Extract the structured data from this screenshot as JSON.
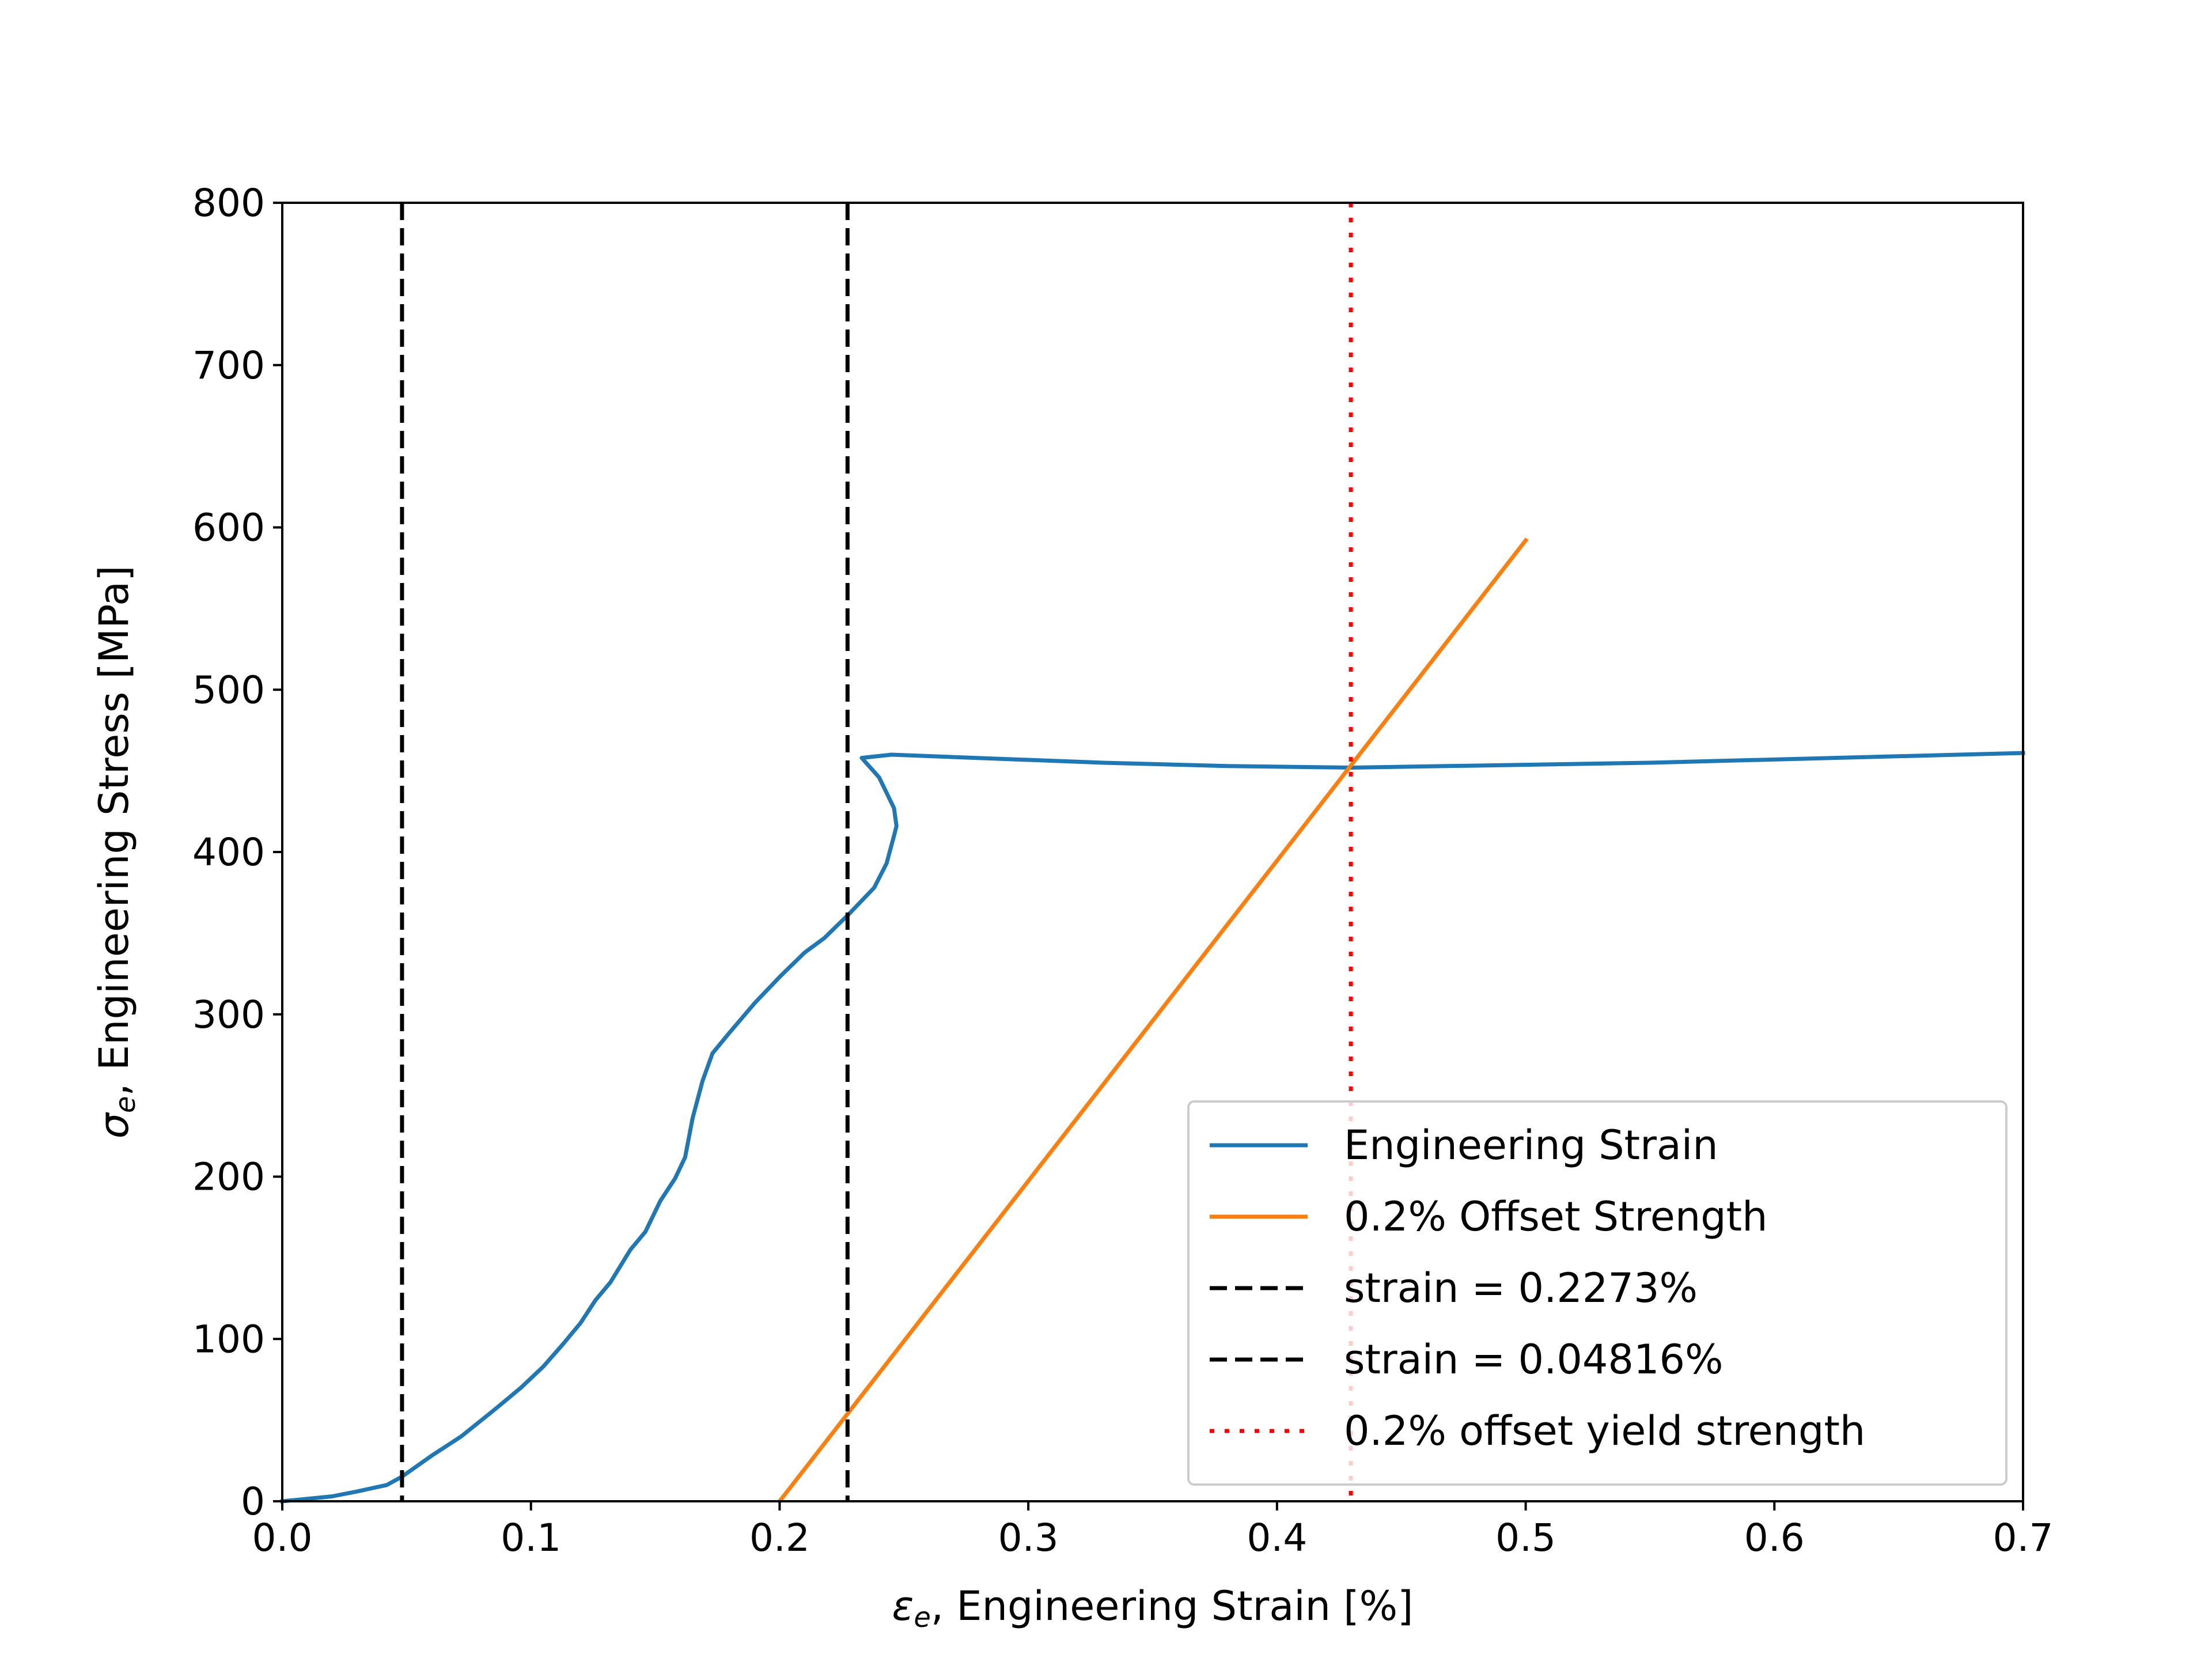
{
  "chart_data": {
    "type": "line",
    "xlabel_symbol": "ε",
    "xlabel_sub": "e",
    "xlabel_text": ", Engineering Strain  [%]",
    "ylabel_symbol": "σ",
    "ylabel_sub": "e",
    "ylabel_text": ", Engineering Stress  [MPa]",
    "xlim": [
      0.0,
      0.7
    ],
    "ylim": [
      0,
      800
    ],
    "x_ticks": [
      "0.0",
      "0.1",
      "0.2",
      "0.3",
      "0.4",
      "0.5",
      "0.6",
      "0.7"
    ],
    "y_ticks": [
      "0",
      "100",
      "200",
      "300",
      "400",
      "500",
      "600",
      "700",
      "800"
    ],
    "grid": false,
    "legend_position": "lower-right",
    "series": [
      {
        "name": "Engineering Strain",
        "style": "solid",
        "color": "#1f77b4",
        "points": [
          [
            0.0,
            0
          ],
          [
            0.02,
            3
          ],
          [
            0.03,
            6
          ],
          [
            0.042,
            10
          ],
          [
            0.048,
            15
          ],
          [
            0.06,
            28
          ],
          [
            0.072,
            40
          ],
          [
            0.085,
            56
          ],
          [
            0.096,
            70
          ],
          [
            0.105,
            83
          ],
          [
            0.113,
            97
          ],
          [
            0.12,
            110
          ],
          [
            0.126,
            124
          ],
          [
            0.132,
            135
          ],
          [
            0.14,
            155
          ],
          [
            0.146,
            166
          ],
          [
            0.152,
            185
          ],
          [
            0.158,
            199
          ],
          [
            0.162,
            212
          ],
          [
            0.165,
            236
          ],
          [
            0.169,
            259
          ],
          [
            0.173,
            276
          ],
          [
            0.18,
            289
          ],
          [
            0.19,
            307
          ],
          [
            0.2,
            323
          ],
          [
            0.21,
            338
          ],
          [
            0.218,
            347
          ],
          [
            0.228,
            362
          ],
          [
            0.238,
            378
          ],
          [
            0.243,
            393
          ],
          [
            0.246,
            410
          ],
          [
            0.247,
            416
          ],
          [
            0.246,
            427
          ],
          [
            0.24,
            446
          ],
          [
            0.233,
            458
          ],
          [
            0.245,
            460
          ],
          [
            0.33,
            455
          ],
          [
            0.38,
            453
          ],
          [
            0.43,
            452
          ],
          [
            0.55,
            455
          ],
          [
            0.7,
            461
          ]
        ]
      },
      {
        "name": "0.2% Offset Strength",
        "style": "solid",
        "color": "#ff7f0e",
        "points": [
          [
            0.2,
            0
          ],
          [
            0.5,
            592
          ]
        ]
      },
      {
        "name": "strain = 0.2273%",
        "style": "dashed",
        "color": "#000000",
        "x": 0.2273
      },
      {
        "name": "strain = 0.04816%",
        "style": "dashed",
        "color": "#000000",
        "x": 0.04816
      },
      {
        "name": "0.2% offset yield strength",
        "style": "dotted",
        "color": "#ff0000",
        "x": 0.4297
      }
    ]
  }
}
